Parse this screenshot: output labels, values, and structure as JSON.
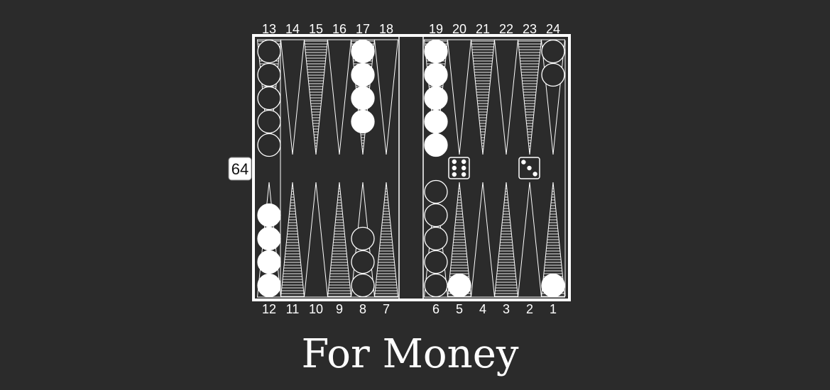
{
  "title": "For Money",
  "colors": {
    "background": "#2b2b2b",
    "line": "#ffffff",
    "player_checker": "#ffffff",
    "opponent_checker": "#2b2b2b",
    "cube_fill": "#ffffff"
  },
  "cube": {
    "value": "64"
  },
  "point_labels": {
    "top": [
      "13",
      "14",
      "15",
      "16",
      "17",
      "18",
      "19",
      "20",
      "21",
      "22",
      "23",
      "24"
    ],
    "bottom": [
      "12",
      "11",
      "10",
      "9",
      "8",
      "7",
      "6",
      "5",
      "4",
      "3",
      "2",
      "1"
    ]
  },
  "dice": [
    6,
    3
  ],
  "checkers": [
    {
      "point": 1,
      "player": "white",
      "count": 1
    },
    {
      "point": 5,
      "player": "white",
      "count": 1
    },
    {
      "point": 6,
      "player": "black",
      "count": 5
    },
    {
      "point": 8,
      "player": "black",
      "count": 3
    },
    {
      "point": 12,
      "player": "white",
      "count": 4
    },
    {
      "point": 13,
      "player": "black",
      "count": 5
    },
    {
      "point": 17,
      "player": "white",
      "count": 4
    },
    {
      "point": 19,
      "player": "white",
      "count": 5
    },
    {
      "point": 24,
      "player": "black",
      "count": 2
    }
  ]
}
